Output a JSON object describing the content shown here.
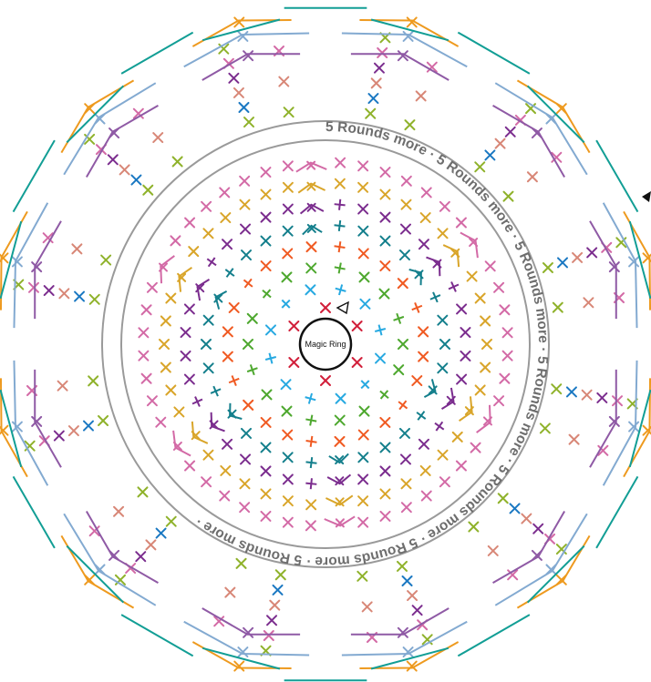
{
  "diagram": {
    "type": "crochet-round-chart",
    "center_label": "Magic Ring",
    "band_phrase": "5 Rounds more",
    "band_separator": " · ",
    "symmetry_sections": 6,
    "colors": {
      "red": "#d11f3a",
      "cyan": "#27a9e1",
      "green": "#4ea82f",
      "orange": "#f05a22",
      "teal": "#147f8c",
      "purple": "#7b2d8e",
      "gold": "#d9a52a",
      "pink": "#d36aa6",
      "lime": "#8fb22b",
      "blue": "#1a78c2",
      "salmon": "#d88777",
      "lightblue": "#83aad1",
      "outer_orange": "#ee9a1f",
      "outer_teal": "#129e95",
      "outer_purple": "#8f5aa5",
      "band_gray": "#9a9a9a",
      "text_gray": "#6e6e6e",
      "ring_black": "#111111"
    },
    "legend_marker": "triangle-direction-icon"
  }
}
